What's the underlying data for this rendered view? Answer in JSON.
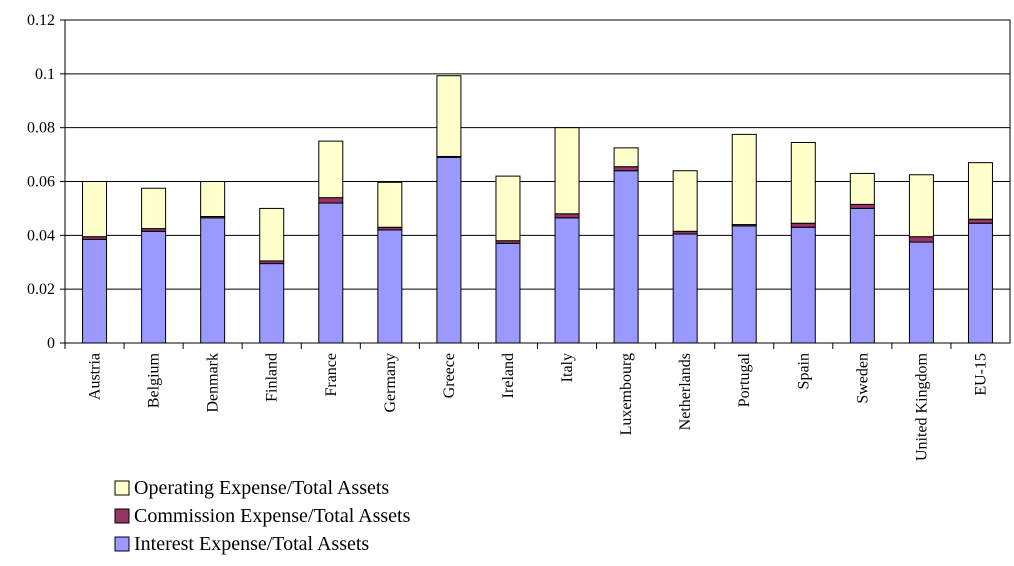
{
  "chart_data": {
    "type": "stacked_bar",
    "categories": [
      "Austria",
      "Belgium",
      "Denmark",
      "Finland",
      "France",
      "Germany",
      "Greece",
      "Ireland",
      "Italy",
      "Luxembourg",
      "Netherlands",
      "Portugal",
      "Spain",
      "Sweden",
      "United Kingdom",
      "EU-15"
    ],
    "series": [
      {
        "name": "Interest Expense/Total Assets",
        "color": "#9999ff",
        "values": [
          0.0385,
          0.0415,
          0.0465,
          0.0295,
          0.052,
          0.042,
          0.069,
          0.037,
          0.0465,
          0.064,
          0.0405,
          0.0435,
          0.043,
          0.05,
          0.0375,
          0.0445
        ]
      },
      {
        "name": "Commission Expense/Total Assets",
        "color": "#993366",
        "values": [
          0.001,
          0.001,
          0.0005,
          0.001,
          0.002,
          0.001,
          0.0003,
          0.001,
          0.0015,
          0.0015,
          0.001,
          0.0005,
          0.0015,
          0.0015,
          0.002,
          0.0015
        ]
      },
      {
        "name": "Operating Expense/Total Assets",
        "color": "#ffffcc",
        "values": [
          0.0205,
          0.015,
          0.013,
          0.0195,
          0.021,
          0.0167,
          0.03,
          0.024,
          0.032,
          0.007,
          0.0225,
          0.0335,
          0.03,
          0.0115,
          0.023,
          0.021
        ]
      }
    ],
    "ylim": [
      0,
      0.12
    ],
    "yticks": [
      0,
      0.02,
      0.04,
      0.06,
      0.08,
      0.1,
      0.12
    ],
    "grid": true
  }
}
